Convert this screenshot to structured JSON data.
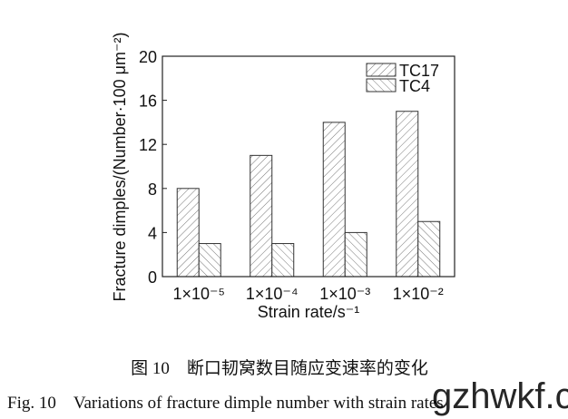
{
  "chart_data": {
    "type": "bar",
    "categories": [
      "1×10⁻⁵",
      "1×10⁻⁴",
      "1×10⁻³",
      "1×10⁻²"
    ],
    "series": [
      {
        "name": "TC17",
        "values": [
          8,
          11,
          14,
          15
        ],
        "pattern": "diagonal-hatch-forward"
      },
      {
        "name": "TC4",
        "values": [
          3,
          3,
          4,
          5
        ],
        "pattern": "diagonal-hatch-backward"
      }
    ],
    "xlabel": "Strain rate/s⁻¹",
    "ylabel": "Fracture dimples/(Number·100 μm⁻²)",
    "ylim": [
      0,
      20
    ],
    "yticks": [
      "0",
      "4",
      "8",
      "12",
      "16",
      "20"
    ],
    "legend_position": "top-right",
    "grid": false
  },
  "caption_cn": "图 10　断口韧窝数目随应变速率的变化",
  "caption_en": "Fig. 10　Variations of fracture dimple number with strain rates",
  "watermark": "gzhwkf.com"
}
